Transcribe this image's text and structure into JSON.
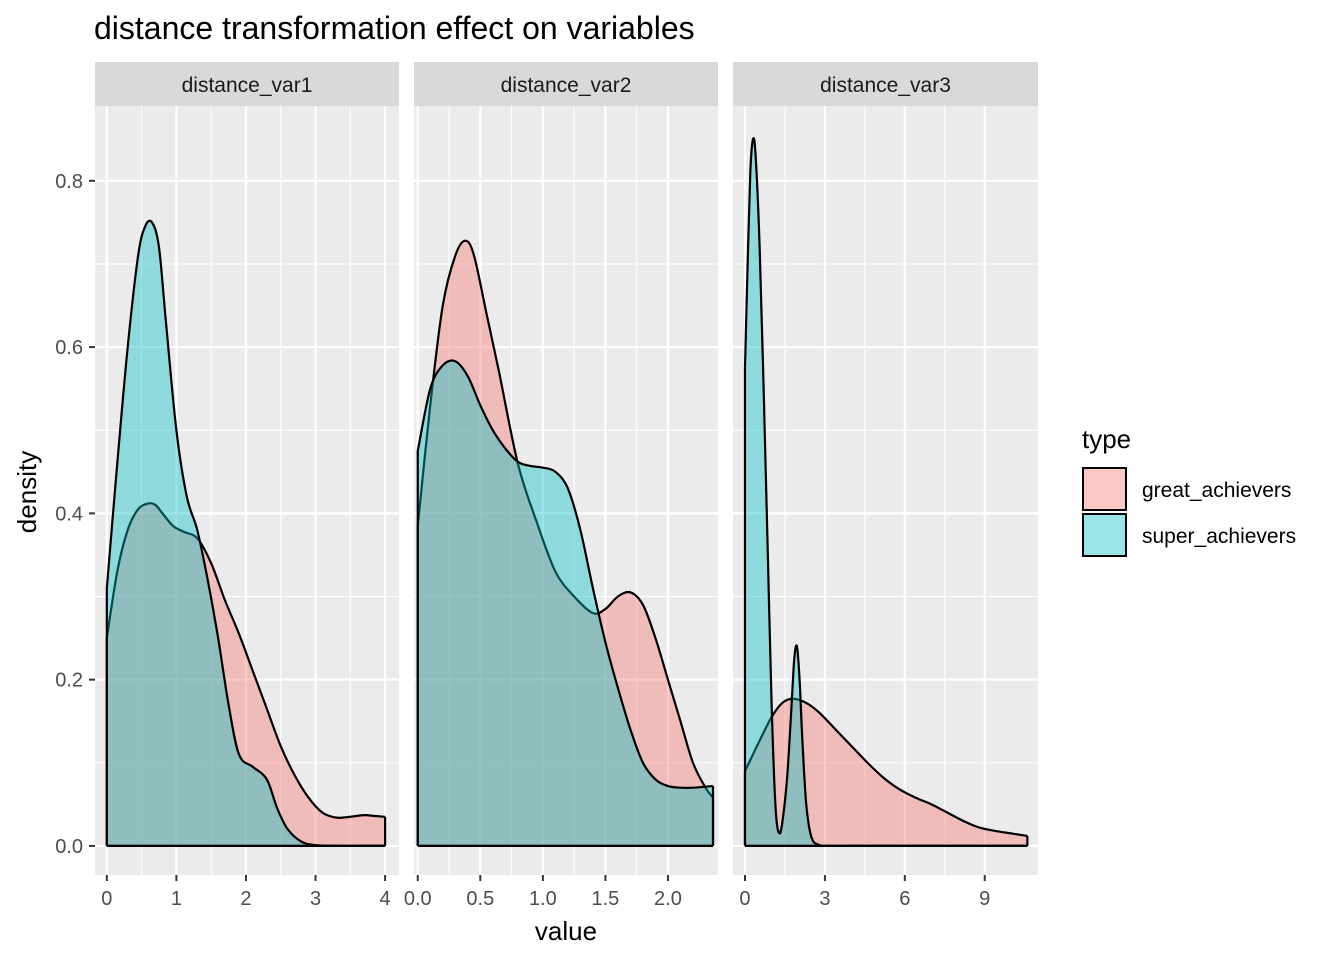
{
  "chart_data": {
    "type": "area",
    "title": "distance transformation effect on variables",
    "xlabel": "value",
    "ylabel": "density",
    "ylim": [
      -0.035,
      0.89
    ],
    "yticks": [
      0.0,
      0.2,
      0.4,
      0.6,
      0.8
    ],
    "ytick_labels": [
      "0.0",
      "0.2",
      "0.4",
      "0.6",
      "0.8"
    ],
    "grid": true,
    "legend": {
      "title": "type",
      "position": "right",
      "entries": [
        {
          "name": "great_achievers",
          "color": "#F8766D"
        },
        {
          "name": "super_achievers",
          "color": "#00BFC4"
        }
      ]
    },
    "colors": {
      "panel_bg": "#EBEBEB",
      "strip_bg": "#D9D9D9",
      "grid": "#FFFFFF",
      "great_achievers": "#F8766D",
      "super_achievers": "#00BFC4"
    },
    "panels": [
      {
        "strip": "distance_var1",
        "xlim": [
          -0.17,
          4.2
        ],
        "xticks": [
          0,
          1,
          2,
          3,
          4
        ],
        "xtick_labels": [
          "0",
          "1",
          "2",
          "3",
          "4"
        ],
        "series": [
          {
            "name": "great_achievers",
            "x": [
              0,
              0.15,
              0.3,
              0.45,
              0.6,
              0.7,
              0.8,
              0.95,
              1.1,
              1.3,
              1.5,
              1.7,
              1.9,
              2.1,
              2.3,
              2.5,
              2.7,
              2.9,
              3.1,
              3.3,
              3.5,
              3.7,
              3.85,
              4.0
            ],
            "y": [
              0.25,
              0.33,
              0.38,
              0.405,
              0.412,
              0.41,
              0.4,
              0.385,
              0.378,
              0.37,
              0.34,
              0.295,
              0.255,
              0.21,
              0.165,
              0.12,
              0.085,
              0.058,
              0.04,
              0.034,
              0.035,
              0.037,
              0.036,
              0.035
            ]
          },
          {
            "name": "super_achievers",
            "x": [
              0,
              0.15,
              0.3,
              0.45,
              0.55,
              0.65,
              0.75,
              0.85,
              1.0,
              1.15,
              1.3,
              1.45,
              1.6,
              1.75,
              1.9,
              2.1,
              2.3,
              2.45,
              2.6,
              2.8,
              3.0,
              3.3,
              3.6,
              4.0
            ],
            "y": [
              0.31,
              0.46,
              0.6,
              0.71,
              0.745,
              0.75,
              0.72,
              0.63,
              0.5,
              0.42,
              0.38,
              0.32,
              0.25,
              0.17,
              0.11,
              0.095,
              0.08,
              0.045,
              0.02,
              0.005,
              0.001,
              0.0,
              0.0,
              0.0
            ]
          }
        ]
      },
      {
        "strip": "distance_var2",
        "xlim": [
          -0.03,
          2.4
        ],
        "xticks": [
          0.0,
          0.5,
          1.0,
          1.5,
          2.0
        ],
        "xtick_labels": [
          "0.0",
          "0.5",
          "1.0",
          "1.5",
          "2.0"
        ],
        "series": [
          {
            "name": "great_achievers",
            "x": [
              0.0,
              0.1,
              0.2,
              0.3,
              0.38,
              0.45,
              0.55,
              0.65,
              0.8,
              0.95,
              1.1,
              1.25,
              1.4,
              1.5,
              1.6,
              1.7,
              1.8,
              1.9,
              2.0,
              2.1,
              2.2,
              2.3,
              2.36
            ],
            "y": [
              0.385,
              0.53,
              0.65,
              0.71,
              0.728,
              0.71,
              0.64,
              0.57,
              0.46,
              0.39,
              0.33,
              0.3,
              0.28,
              0.285,
              0.3,
              0.305,
              0.29,
              0.25,
              0.2,
              0.15,
              0.1,
              0.07,
              0.058
            ]
          },
          {
            "name": "super_achievers",
            "x": [
              0.0,
              0.1,
              0.2,
              0.3,
              0.4,
              0.5,
              0.6,
              0.7,
              0.8,
              0.9,
              1.0,
              1.1,
              1.2,
              1.3,
              1.4,
              1.5,
              1.6,
              1.7,
              1.8,
              1.9,
              2.0,
              2.1,
              2.2,
              2.36
            ],
            "y": [
              0.475,
              0.55,
              0.578,
              0.583,
              0.565,
              0.53,
              0.5,
              0.478,
              0.462,
              0.457,
              0.455,
              0.45,
              0.43,
              0.38,
              0.31,
              0.245,
              0.19,
              0.14,
              0.1,
              0.08,
              0.072,
              0.07,
              0.07,
              0.072
            ]
          }
        ]
      },
      {
        "strip": "distance_var3",
        "xlim": [
          -0.45,
          11.0
        ],
        "xticks": [
          0,
          3,
          6,
          9
        ],
        "xtick_labels": [
          "0",
          "3",
          "6",
          "9"
        ],
        "series": [
          {
            "name": "great_achievers",
            "x": [
              0,
              0.3,
              0.6,
              1.0,
              1.4,
              1.8,
              2.3,
              2.8,
              3.4,
              4.0,
              4.6,
              5.2,
              5.8,
              6.4,
              7.0,
              7.6,
              8.2,
              8.8,
              9.4,
              10.0,
              10.6
            ],
            "y": [
              0.09,
              0.11,
              0.13,
              0.155,
              0.172,
              0.177,
              0.172,
              0.16,
              0.14,
              0.12,
              0.1,
              0.082,
              0.068,
              0.058,
              0.05,
              0.04,
              0.03,
              0.022,
              0.018,
              0.015,
              0.012
            ]
          },
          {
            "name": "super_achievers",
            "x": [
              0,
              0.1,
              0.2,
              0.3,
              0.4,
              0.55,
              0.7,
              0.85,
              1.0,
              1.15,
              1.3,
              1.45,
              1.6,
              1.75,
              1.85,
              1.95,
              2.05,
              2.15,
              2.3,
              2.5,
              2.8,
              3.2,
              4.0,
              6.0,
              8.0,
              10.6
            ],
            "y": [
              0.575,
              0.7,
              0.81,
              0.85,
              0.83,
              0.72,
              0.55,
              0.36,
              0.17,
              0.045,
              0.015,
              0.04,
              0.09,
              0.17,
              0.225,
              0.24,
              0.2,
              0.13,
              0.05,
              0.01,
              0.001,
              0.0,
              0.0,
              0.0,
              0.0,
              0.0
            ]
          }
        ]
      }
    ]
  }
}
